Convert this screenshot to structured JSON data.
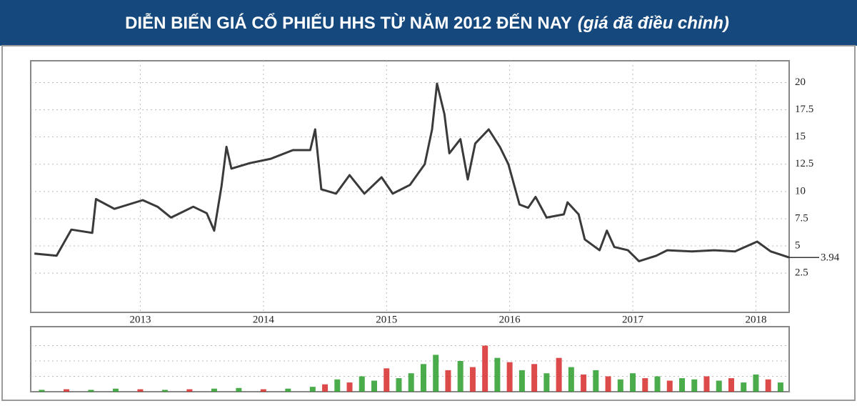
{
  "chart_data": [
    {
      "type": "line",
      "title": "DIỄN BIẾN GIÁ CỔ PHIẾU HHS TỪ NĂM 2012 ĐẾN NAY",
      "subtitle": "(giá đã điều chỉnh)",
      "x": [
        2012.14,
        2012.32,
        2012.44,
        2012.61,
        2012.64,
        2012.79,
        2013.02,
        2013.14,
        2013.25,
        2013.43,
        2013.54,
        2013.6,
        2013.66,
        2013.7,
        2013.74,
        2013.89,
        2014.06,
        2014.24,
        2014.38,
        2014.42,
        2014.47,
        2014.59,
        2014.7,
        2014.82,
        2014.96,
        2015.05,
        2015.19,
        2015.31,
        2015.37,
        2015.41,
        2015.47,
        2015.51,
        2015.6,
        2015.66,
        2015.72,
        2015.83,
        2015.92,
        2015.99,
        2016.08,
        2016.15,
        2016.21,
        2016.3,
        2016.44,
        2016.47,
        2016.56,
        2016.61,
        2016.73,
        2016.79,
        2016.85,
        2016.96,
        2017.05,
        2017.19,
        2017.28,
        2017.48,
        2017.66,
        2017.83,
        2018.01,
        2018.12,
        2018.27
      ],
      "values": [
        4.3,
        4.1,
        6.5,
        6.2,
        9.3,
        8.4,
        9.2,
        8.6,
        7.6,
        8.6,
        8.0,
        6.4,
        10.5,
        14.1,
        12.1,
        12.6,
        13.0,
        13.8,
        13.8,
        15.7,
        10.2,
        9.8,
        11.5,
        9.8,
        11.3,
        9.8,
        10.6,
        12.5,
        15.7,
        19.9,
        17.1,
        13.5,
        14.8,
        11.1,
        14.4,
        15.7,
        14.1,
        12.5,
        8.8,
        8.5,
        9.5,
        7.6,
        7.9,
        9.0,
        7.9,
        5.6,
        4.6,
        6.4,
        4.9,
        4.6,
        3.6,
        4.1,
        4.6,
        4.5,
        4.6,
        4.5,
        5.4,
        4.5,
        3.94
      ],
      "last_value": 3.94,
      "color": "#3a3a3a",
      "xlim": [
        2012.11,
        2018.27
      ],
      "xticks": [
        2013,
        2014,
        2015,
        2016,
        2017,
        2018
      ],
      "ylim": [
        -1.1,
        22
      ],
      "yticks": [
        2.5,
        5,
        7.5,
        10,
        12.5,
        15,
        17.5,
        20
      ],
      "grid": true
    },
    {
      "type": "bar",
      "x": [
        2012.2,
        2012.4,
        2012.6,
        2012.8,
        2013.0,
        2013.2,
        2013.4,
        2013.6,
        2013.8,
        2014.0,
        2014.2,
        2014.4,
        2014.5,
        2014.6,
        2014.7,
        2014.8,
        2014.9,
        2015.0,
        2015.1,
        2015.2,
        2015.3,
        2015.4,
        2015.5,
        2015.6,
        2015.7,
        2015.8,
        2015.9,
        2016.0,
        2016.1,
        2016.2,
        2016.3,
        2016.4,
        2016.5,
        2016.6,
        2016.7,
        2016.8,
        2016.9,
        2017.0,
        2017.1,
        2017.2,
        2017.3,
        2017.4,
        2017.5,
        2017.6,
        2017.7,
        2017.8,
        2017.9,
        2018.0,
        2018.1,
        2018.2
      ],
      "values": [
        3,
        4,
        3,
        5,
        4,
        3,
        4,
        5,
        6,
        4,
        5,
        8,
        12,
        20,
        15,
        25,
        18,
        38,
        22,
        30,
        45,
        60,
        35,
        50,
        40,
        75,
        55,
        48,
        35,
        45,
        30,
        55,
        40,
        28,
        35,
        25,
        20,
        30,
        22,
        25,
        18,
        22,
        20,
        25,
        18,
        22,
        15,
        28,
        20,
        15
      ],
      "colors": [
        "#2a9d2a",
        "#d62a2a",
        "#2a9d2a",
        "#2a9d2a",
        "#d62a2a",
        "#2a9d2a",
        "#d62a2a",
        "#2a9d2a",
        "#2a9d2a",
        "#d62a2a",
        "#2a9d2a",
        "#2a9d2a",
        "#d62a2a",
        "#2a9d2a",
        "#d62a2a",
        "#2a9d2a",
        "#2a9d2a",
        "#d62a2a",
        "#2a9d2a",
        "#2a9d2a",
        "#2a9d2a",
        "#2a9d2a",
        "#d62a2a",
        "#2a9d2a",
        "#d62a2a",
        "#d62a2a",
        "#2a9d2a",
        "#d62a2a",
        "#2a9d2a",
        "#d62a2a",
        "#2a9d2a",
        "#d62a2a",
        "#2a9d2a",
        "#d62a2a",
        "#2a9d2a",
        "#d62a2a",
        "#2a9d2a",
        "#2a9d2a",
        "#d62a2a",
        "#2a9d2a",
        "#d62a2a",
        "#2a9d2a",
        "#2a9d2a",
        "#d62a2a",
        "#2a9d2a",
        "#d62a2a",
        "#2a9d2a",
        "#2a9d2a",
        "#d62a2a",
        "#2a9d2a"
      ],
      "ylim": [
        0,
        100
      ]
    }
  ]
}
